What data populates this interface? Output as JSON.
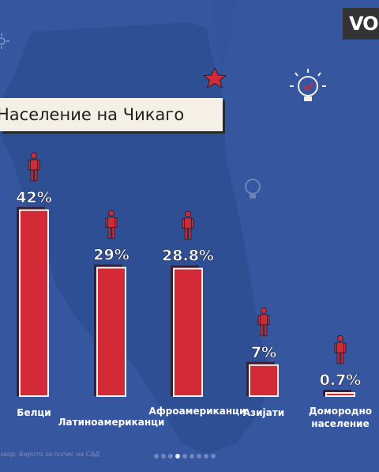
{
  "title": "Население на Чикаго",
  "logo_text": "VO",
  "source": "Извор: Бирото за попис на САД",
  "colors": {
    "background": "#3656a0",
    "map": "#2e4d92",
    "bar": "#d42a37",
    "bar_shadow": "#3a1e32",
    "label": "#ffffff",
    "icon": "#cc2b38",
    "star": "#d42a37"
  },
  "carousel": {
    "count": 9,
    "active_index": 3
  },
  "chart_data": {
    "type": "bar",
    "title": "Население на Чикаго",
    "categories": [
      "Белци",
      "Латиноамериканци",
      "Афроамериканци",
      "Азијати",
      "Домородно население"
    ],
    "category_lines": [
      [
        "Белци"
      ],
      [
        "Латиноамериканци"
      ],
      [
        "Афроамериканци"
      ],
      [
        "Азијати"
      ],
      [
        "Домородно",
        "население"
      ]
    ],
    "values": [
      42,
      29,
      28.8,
      7,
      0.7
    ],
    "value_labels": [
      "42%",
      "29%",
      "28.8%",
      "7%",
      "0.7%"
    ],
    "unit": "%",
    "ylim": [
      0,
      45
    ],
    "grid": false,
    "legend": "none",
    "icon": "person-icon"
  }
}
